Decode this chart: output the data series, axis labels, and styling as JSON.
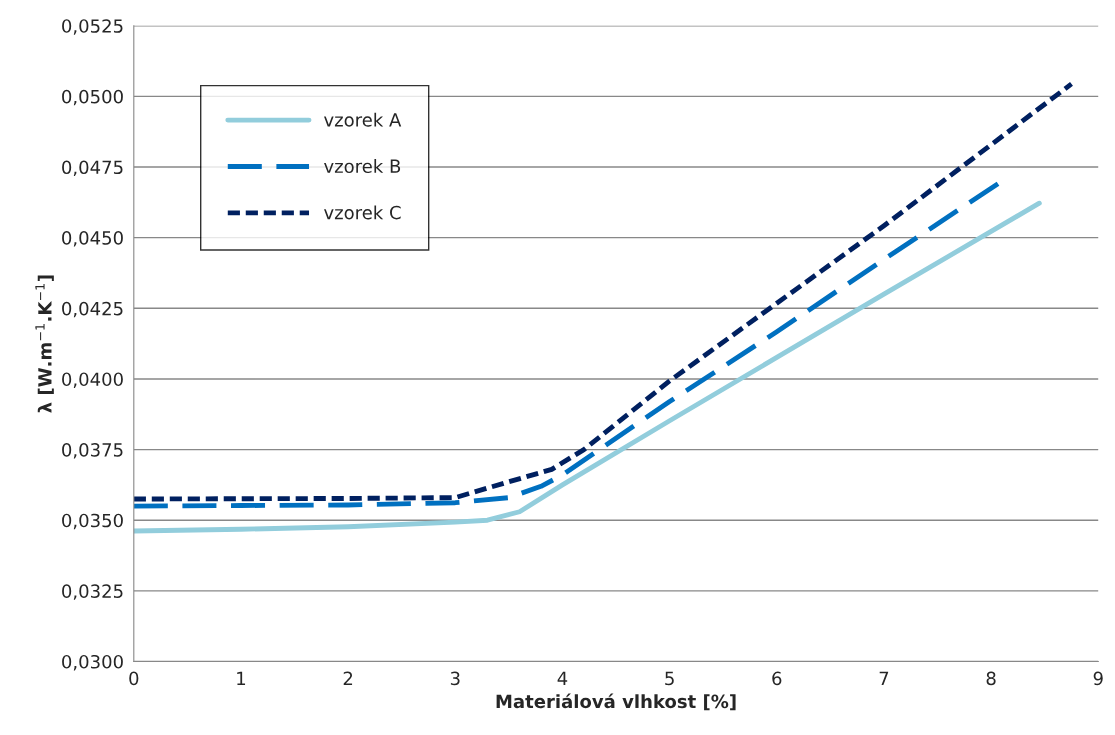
{
  "chart_data": {
    "type": "line",
    "xlabel": "Materiálová vlhkost [%]",
    "ylabel": "λ [W.m$^{−1}$.K$^{−1}$]",
    "xlim": [
      0,
      9
    ],
    "xticks": [
      0,
      1,
      2,
      3,
      4,
      5,
      6,
      7,
      8,
      9
    ],
    "ylim": [
      0.03,
      0.0525
    ],
    "yticks": [
      {
        "value": 0.03,
        "label": "0,0300"
      },
      {
        "value": 0.0325,
        "label": "0,0325"
      },
      {
        "value": 0.035,
        "label": "0,0350"
      },
      {
        "value": 0.0375,
        "label": "0,0375"
      },
      {
        "value": 0.04,
        "label": "0,0400"
      },
      {
        "value": 0.0425,
        "label": "0,0425"
      },
      {
        "value": 0.045,
        "label": "0,0450"
      },
      {
        "value": 0.0475,
        "label": "0,0475"
      },
      {
        "value": 0.05,
        "label": "0,0500"
      },
      {
        "value": 0.0525,
        "label": "0,0525"
      }
    ],
    "grid": "y",
    "legend": "top left",
    "series": [
      {
        "name": "vzorek A",
        "color": "#92cddc",
        "line_style": "solid",
        "x": [
          0,
          1,
          2,
          3,
          3.3,
          3.6,
          4,
          5,
          6,
          7,
          8.45
        ],
        "values": [
          0.03462,
          0.03468,
          0.03477,
          0.03493,
          0.035,
          0.0353,
          0.03625,
          0.03852,
          0.04076,
          0.043,
          0.04622
        ]
      },
      {
        "name": "vzorek B",
        "color": "#0070c0",
        "line_style": "dashed",
        "x": [
          0,
          1,
          2,
          3,
          3.5,
          3.8,
          4,
          5,
          6,
          7,
          8.1
        ],
        "values": [
          0.0355,
          0.03552,
          0.03554,
          0.03562,
          0.0358,
          0.0362,
          0.0366,
          0.0392,
          0.04167,
          0.04423,
          0.047
        ]
      },
      {
        "name": "vzorek C",
        "color": "#002060",
        "line_style": "dotted",
        "x": [
          0,
          1,
          2,
          3,
          3.5,
          3.9,
          4.2,
          5,
          6,
          7,
          8.75
        ],
        "values": [
          0.03575,
          0.03576,
          0.03577,
          0.0358,
          0.03636,
          0.0368,
          0.0375,
          0.03993,
          0.04268,
          0.04542,
          0.05044
        ]
      }
    ]
  }
}
